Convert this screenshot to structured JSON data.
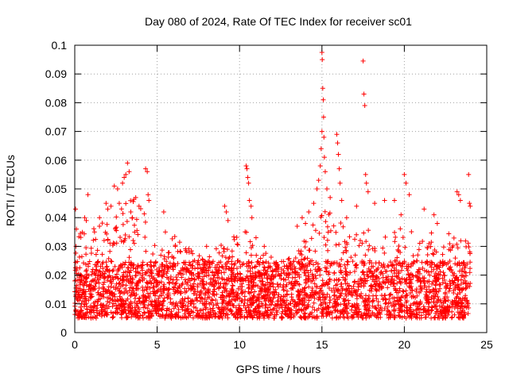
{
  "chart_data": {
    "type": "scatter",
    "title": "Day 080 of 2024, Rate Of TEC Index for receiver sc01",
    "xlabel": "GPS time / hours",
    "ylabel": "ROTI / TECUs",
    "xlim": [
      0,
      25
    ],
    "ylim": [
      0,
      0.1
    ],
    "xticks": [
      "0",
      "5",
      "10",
      "15",
      "20",
      "25"
    ],
    "xtick_values": [
      0,
      5,
      10,
      15,
      20,
      25
    ],
    "yticks": [
      "0",
      "0.01",
      "0.02",
      "0.03",
      "0.04",
      "0.05",
      "0.06",
      "0.07",
      "0.08",
      "0.09",
      "0.1"
    ],
    "ytick_values": [
      0,
      0.01,
      0.02,
      0.03,
      0.04,
      0.05,
      0.06,
      0.07,
      0.08,
      0.09,
      0.1
    ],
    "grid": true,
    "marker": "+",
    "series": [
      {
        "name": "ROTI",
        "color": "#ff0000",
        "x_range": [
          0,
          24
        ],
        "typical_band": [
          0.005,
          0.025
        ],
        "points": [
          [
            0.05,
            0.043
          ],
          [
            0.1,
            0.036
          ],
          [
            0.6,
            0.04
          ],
          [
            0.7,
            0.039
          ],
          [
            0.8,
            0.048
          ],
          [
            1.2,
            0.035
          ],
          [
            1.5,
            0.037
          ],
          [
            1.9,
            0.045
          ],
          [
            2.0,
            0.043
          ],
          [
            2.2,
            0.044
          ],
          [
            2.4,
            0.051
          ],
          [
            2.6,
            0.05
          ],
          [
            2.7,
            0.045
          ],
          [
            2.9,
            0.052
          ],
          [
            3.0,
            0.054
          ],
          [
            3.1,
            0.055
          ],
          [
            3.2,
            0.059
          ],
          [
            3.3,
            0.056
          ],
          [
            3.4,
            0.042
          ],
          [
            3.5,
            0.04
          ],
          [
            3.7,
            0.047
          ],
          [
            3.9,
            0.044
          ],
          [
            4.3,
            0.057
          ],
          [
            4.4,
            0.056
          ],
          [
            4.45,
            0.048
          ],
          [
            4.5,
            0.046
          ],
          [
            5.4,
            0.042
          ],
          [
            5.5,
            0.035
          ],
          [
            6.1,
            0.03
          ],
          [
            6.8,
            0.028
          ],
          [
            7.5,
            0.025
          ],
          [
            8.0,
            0.03
          ],
          [
            9.1,
            0.044
          ],
          [
            9.2,
            0.042
          ],
          [
            9.3,
            0.039
          ],
          [
            10.4,
            0.058
          ],
          [
            10.45,
            0.057
          ],
          [
            10.5,
            0.054
          ],
          [
            10.55,
            0.052
          ],
          [
            10.6,
            0.046
          ],
          [
            10.7,
            0.044
          ],
          [
            10.75,
            0.04
          ],
          [
            11.0,
            0.033
          ],
          [
            11.5,
            0.03
          ],
          [
            12.2,
            0.022
          ],
          [
            13.5,
            0.037
          ],
          [
            13.8,
            0.04
          ],
          [
            14.0,
            0.038
          ],
          [
            14.2,
            0.042
          ],
          [
            14.5,
            0.045
          ],
          [
            14.7,
            0.05
          ],
          [
            14.8,
            0.053
          ],
          [
            14.9,
            0.058
          ],
          [
            14.95,
            0.064
          ],
          [
            15.0,
            0.07
          ],
          [
            15.0,
            0.0975
          ],
          [
            15.02,
            0.095
          ],
          [
            15.05,
            0.085
          ],
          [
            15.08,
            0.081
          ],
          [
            15.1,
            0.075
          ],
          [
            15.12,
            0.068
          ],
          [
            15.15,
            0.061
          ],
          [
            15.2,
            0.056
          ],
          [
            15.3,
            0.05
          ],
          [
            15.5,
            0.047
          ],
          [
            15.9,
            0.069
          ],
          [
            15.95,
            0.066
          ],
          [
            16.0,
            0.062
          ],
          [
            16.05,
            0.057
          ],
          [
            16.1,
            0.052
          ],
          [
            16.2,
            0.046
          ],
          [
            16.5,
            0.04
          ],
          [
            17.1,
            0.044
          ],
          [
            17.5,
            0.0945
          ],
          [
            17.55,
            0.083
          ],
          [
            17.6,
            0.079
          ],
          [
            17.65,
            0.055
          ],
          [
            17.7,
            0.052
          ],
          [
            17.8,
            0.049
          ],
          [
            18.2,
            0.045
          ],
          [
            18.8,
            0.046
          ],
          [
            19.4,
            0.046
          ],
          [
            19.8,
            0.041
          ],
          [
            20.0,
            0.055
          ],
          [
            20.1,
            0.052
          ],
          [
            20.3,
            0.048
          ],
          [
            21.2,
            0.043
          ],
          [
            21.8,
            0.041
          ],
          [
            22.0,
            0.038
          ],
          [
            23.2,
            0.049
          ],
          [
            23.3,
            0.048
          ],
          [
            23.4,
            0.046
          ],
          [
            23.9,
            0.055
          ],
          [
            23.95,
            0.045
          ],
          [
            24.0,
            0.044
          ]
        ]
      }
    ]
  }
}
